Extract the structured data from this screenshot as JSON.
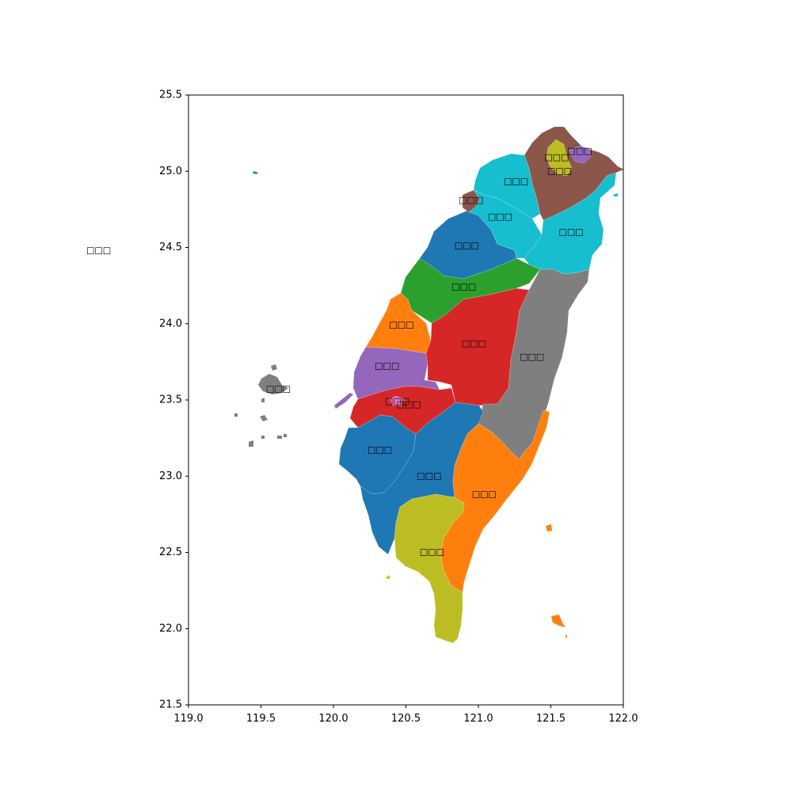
{
  "chart_data": {
    "type": "choropleth",
    "title": "",
    "xlabel": "",
    "ylabel": "",
    "xlim": [
      119.0,
      122.0
    ],
    "ylim": [
      21.5,
      25.5
    ],
    "x_ticks": [
      "119.0",
      "119.5",
      "120.0",
      "120.5",
      "121.0",
      "121.5",
      "122.0"
    ],
    "y_ticks": [
      "21.5",
      "22.0",
      "22.5",
      "23.0",
      "23.5",
      "24.0",
      "24.5",
      "25.0",
      "25.5"
    ],
    "outside_label": {
      "text": "□□□",
      "lon": 118.38,
      "lat": 24.48
    },
    "colors": {
      "blue": "#1f77b4",
      "orange": "#ff7f0e",
      "green": "#2ca02c",
      "red": "#d62728",
      "purple": "#9467bd",
      "brown": "#8c564b",
      "pink": "#e377c2",
      "gray": "#7f7f7f",
      "olive": "#bcbd22",
      "cyan": "#17becf"
    },
    "regions": [
      {
        "label": "□□□",
        "color": "olive",
        "label_lon": 121.54,
        "label_lat": 25.09
      },
      {
        "label": "□□□",
        "color": "purple",
        "label_lon": 121.7,
        "label_lat": 25.13
      },
      {
        "label": "□□□",
        "color": "brown",
        "label_lon": 121.56,
        "label_lat": 25.0
      },
      {
        "label": "□□□",
        "color": "cyan",
        "label_lon": 121.26,
        "label_lat": 24.93
      },
      {
        "label": "□□□",
        "color": "brown",
        "label_lon": 120.95,
        "label_lat": 24.81
      },
      {
        "label": "□□□",
        "color": "cyan",
        "label_lon": 121.15,
        "label_lat": 24.7
      },
      {
        "label": "□□□",
        "color": "cyan",
        "label_lon": 121.64,
        "label_lat": 24.6
      },
      {
        "label": "□□□",
        "color": "blue",
        "label_lon": 120.92,
        "label_lat": 24.51
      },
      {
        "label": "□□□",
        "color": "green",
        "label_lon": 120.9,
        "label_lat": 24.24
      },
      {
        "label": "□□□",
        "color": "orange",
        "label_lon": 120.47,
        "label_lat": 23.99
      },
      {
        "label": "□□□",
        "color": "red",
        "label_lon": 120.97,
        "label_lat": 23.87
      },
      {
        "label": "□□□",
        "color": "gray",
        "label_lon": 121.37,
        "label_lat": 23.78
      },
      {
        "label": "□□□",
        "color": "purple",
        "label_lon": 120.37,
        "label_lat": 23.72
      },
      {
        "label": "□□□",
        "color": "gray",
        "label_lon": 119.62,
        "label_lat": 23.57
      },
      {
        "label": "□□□",
        "color": "pink",
        "label_lon": 120.44,
        "label_lat": 23.49
      },
      {
        "label": "□□□",
        "color": "red",
        "label_lon": 120.52,
        "label_lat": 23.47
      },
      {
        "label": "□□□",
        "color": "blue",
        "label_lon": 120.32,
        "label_lat": 23.17
      },
      {
        "label": "□□□",
        "color": "blue",
        "label_lon": 120.66,
        "label_lat": 23.0
      },
      {
        "label": "□□□",
        "color": "orange",
        "label_lon": 121.04,
        "label_lat": 22.88
      },
      {
        "label": "□□□",
        "color": "olive",
        "label_lon": 120.68,
        "label_lat": 22.5
      }
    ]
  }
}
